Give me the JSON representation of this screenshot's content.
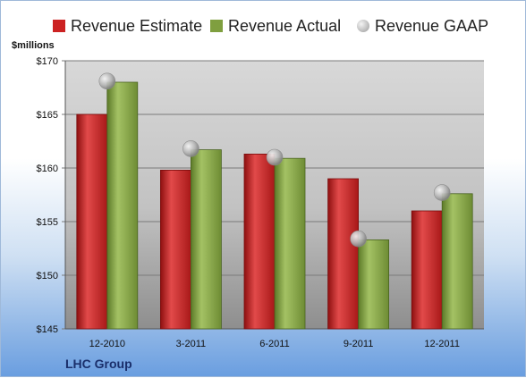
{
  "chart_data": {
    "type": "bar",
    "ylabel": "$millions",
    "ylim": [
      145,
      170
    ],
    "yticks": [
      "$145",
      "$150",
      "$155",
      "$160",
      "$165",
      "$170"
    ],
    "yticks_values": [
      145,
      150,
      155,
      160,
      165,
      170
    ],
    "categories": [
      "12-2010",
      "3-2011",
      "6-2011",
      "9-2011",
      "12-2011"
    ],
    "series": [
      {
        "name": "Revenue Estimate",
        "type": "bar",
        "color": "#cc2222",
        "values": [
          165.0,
          159.8,
          161.3,
          159.0,
          156.0
        ]
      },
      {
        "name": "Revenue Actual",
        "type": "bar",
        "color": "#7f9f3f",
        "values": [
          168.0,
          161.7,
          160.9,
          153.3,
          157.6
        ]
      },
      {
        "name": "Revenue GAAP",
        "type": "marker",
        "color": "#a8a8a8",
        "values": [
          168.1,
          161.8,
          161.0,
          153.4,
          157.7
        ]
      }
    ],
    "legend_position": "top",
    "grid": true
  },
  "company": "LHC Group"
}
